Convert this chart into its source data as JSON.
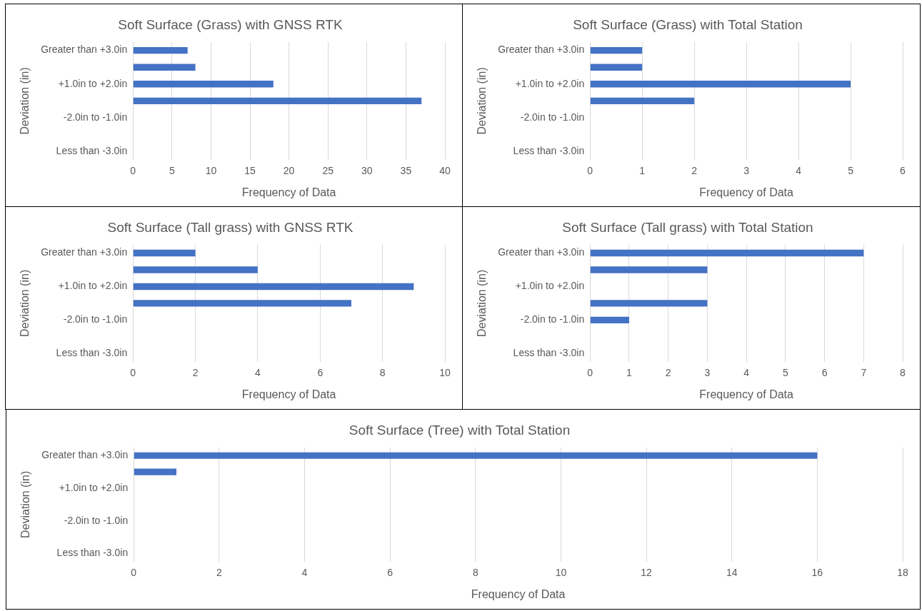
{
  "chart_data": [
    {
      "type": "bar",
      "orientation": "horizontal",
      "title": "Soft Surface (Grass) with GNSS RTK",
      "xlabel": "Frequency of Data",
      "ylabel": "Deviation (in)",
      "categories": [
        "Greater than +3.0in",
        null,
        "+1.0in to +2.0in",
        null,
        "-2.0in to -1.0in",
        null,
        "Less than -3.0in"
      ],
      "values": [
        7,
        8,
        18,
        37,
        0,
        0,
        0
      ],
      "color": "#4472c4",
      "xlim": [
        0,
        40
      ],
      "xticks": [
        0,
        5,
        10,
        15,
        20,
        25,
        30,
        35,
        40
      ],
      "grid": "x"
    },
    {
      "type": "bar",
      "orientation": "horizontal",
      "title": "Soft Surface (Grass) with Total Station",
      "xlabel": "Frequency of Data",
      "ylabel": "Deviation (in)",
      "categories": [
        "Greater than +3.0in",
        null,
        "+1.0in to +2.0in",
        null,
        "-2.0in to -1.0in",
        null,
        "Less than -3.0in"
      ],
      "values": [
        1,
        1,
        5,
        2,
        0,
        0,
        0
      ],
      "color": "#4472c4",
      "xlim": [
        0,
        6
      ],
      "xticks": [
        0,
        1,
        2,
        3,
        4,
        5,
        6
      ],
      "grid": "x"
    },
    {
      "type": "bar",
      "orientation": "horizontal",
      "title": "Soft Surface (Tall grass) with GNSS RTK",
      "xlabel": "Frequency of Data",
      "ylabel": "Deviation (in)",
      "categories": [
        "Greater than +3.0in",
        null,
        "+1.0in to +2.0in",
        null,
        "-2.0in to -1.0in",
        null,
        "Less than -3.0in"
      ],
      "values": [
        2,
        4,
        9,
        7,
        0,
        0,
        0
      ],
      "color": "#4472c4",
      "xlim": [
        0,
        10
      ],
      "xticks": [
        0,
        2,
        4,
        6,
        8,
        10
      ],
      "grid": "x"
    },
    {
      "type": "bar",
      "orientation": "horizontal",
      "title": "Soft Surface (Tall grass) with Total Station",
      "xlabel": "Frequency of Data",
      "ylabel": "Deviation (in)",
      "categories": [
        "Greater than +3.0in",
        null,
        "+1.0in to +2.0in",
        null,
        "-2.0in to -1.0in",
        null,
        "Less than -3.0in"
      ],
      "values": [
        7,
        3,
        0,
        3,
        1,
        0,
        0
      ],
      "color": "#4472c4",
      "xlim": [
        0,
        8
      ],
      "xticks": [
        0,
        1,
        2,
        3,
        4,
        5,
        6,
        7,
        8
      ],
      "grid": "x"
    },
    {
      "type": "bar",
      "orientation": "horizontal",
      "title": "Soft Surface (Tree) with Total Station",
      "xlabel": "Frequency of Data",
      "ylabel": "Deviation (in)",
      "categories": [
        "Greater than +3.0in",
        null,
        "+1.0in to +2.0in",
        null,
        "-2.0in to -1.0in",
        null,
        "Less than -3.0in"
      ],
      "values": [
        16,
        1,
        0,
        0,
        0,
        0,
        0
      ],
      "color": "#4472c4",
      "xlim": [
        0,
        18
      ],
      "xticks": [
        0,
        2,
        4,
        6,
        8,
        10,
        12,
        14,
        16,
        18
      ],
      "grid": "x"
    }
  ]
}
